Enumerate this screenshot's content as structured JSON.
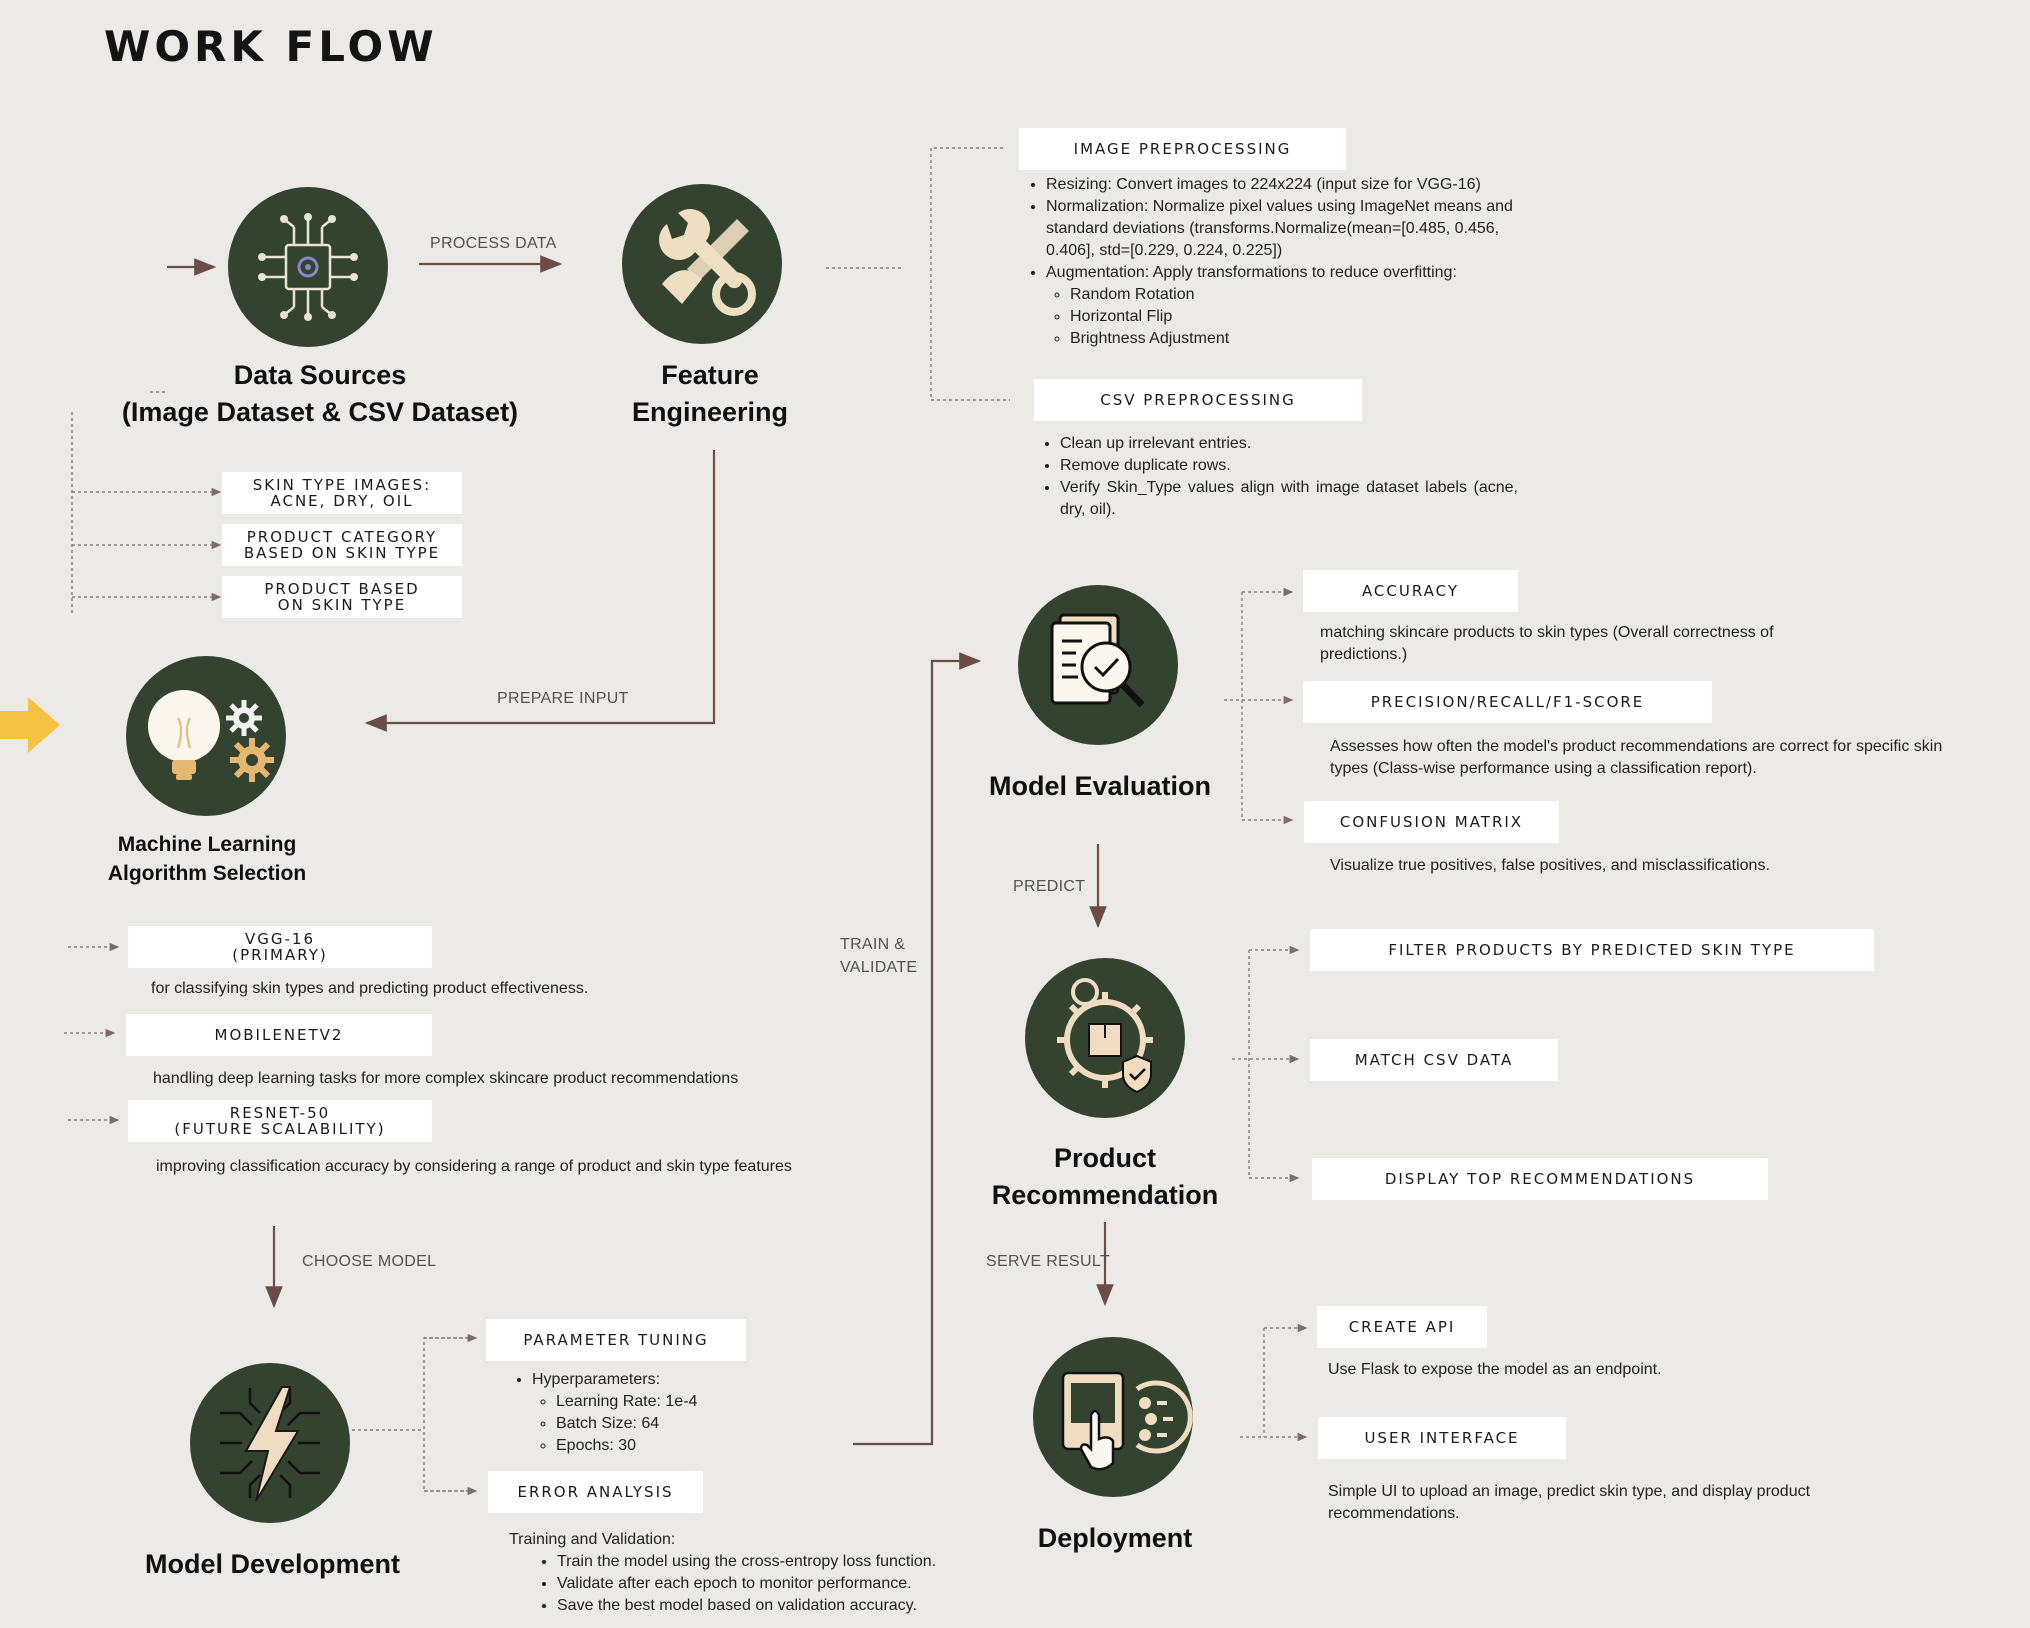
{
  "title": "WORK FLOW",
  "nodes": {
    "data_sources": {
      "line1": "Data Sources",
      "line2": "(Image Dataset & CSV Dataset)"
    },
    "feature_engineering": {
      "line1": "Feature",
      "line2": "Engineering"
    },
    "ml_selection": {
      "line1": "Machine Learning",
      "line2": "Algorithm Selection"
    },
    "model_development": {
      "label": "Model Development"
    },
    "model_evaluation": {
      "label": "Model Evaluation"
    },
    "product_recommendation": {
      "line1": "Product",
      "line2": "Recommendation"
    },
    "deployment": {
      "label": "Deployment"
    }
  },
  "edges": {
    "process_data": "PROCESS DATA",
    "prepare_input": "PREPARE INPUT",
    "choose_model": "CHOOSE MODEL",
    "train_validate_1": "TRAIN &",
    "train_validate_2": "VALIDATE",
    "predict": "PREDICT",
    "serve_result": "SERVE RESULT"
  },
  "data_tags": [
    {
      "line1": "SKIN TYPE IMAGES:",
      "line2": "ACNE, DRY, OIL"
    },
    {
      "line1": "PRODUCT CATEGORY",
      "line2": "BASED ON SKIN TYPE"
    },
    {
      "line1": "PRODUCT BASED",
      "line2": "ON SKIN TYPE"
    }
  ],
  "image_preprocessing": {
    "title": "IMAGE PREPROCESSING",
    "bullets": [
      "Resizing: Convert images to 224x224 (input size for VGG-16)",
      "Normalization: Normalize pixel values using ImageNet means and standard deviations (transforms.Normalize(mean=[0.485, 0.456, 0.406], std=[0.229, 0.224, 0.225])",
      "Augmentation: Apply transformations to reduce overfitting:"
    ],
    "sub_bullets": [
      "Random Rotation",
      "Horizontal Flip",
      "Brightness Adjustment"
    ]
  },
  "csv_preprocessing": {
    "title": "CSV PREPROCESSING",
    "bullets": [
      "Clean up irrelevant entries.",
      "Remove duplicate rows.",
      "Verify Skin_Type values align with image dataset labels (acne, dry, oil)."
    ]
  },
  "models": [
    {
      "line1": "VGG-16",
      "line2": "(PRIMARY)",
      "desc": "for classifying skin types and predicting product effectiveness."
    },
    {
      "line1": "MOBILENETV2",
      "line2": "",
      "desc": "handling deep learning tasks for more complex skincare product recommendations"
    },
    {
      "line1": "RESNET-50",
      "line2": "(FUTURE SCALABILITY)",
      "desc": "improving classification accuracy by considering a range of product and skin type features"
    }
  ],
  "parameter_tuning": {
    "title": "PARAMETER TUNING",
    "bullet": "Hyperparameters:",
    "sub_bullets": [
      "Learning Rate: 1e-4",
      "Batch Size: 64",
      "Epochs: 30"
    ]
  },
  "error_analysis": {
    "title": "ERROR ANALYSIS",
    "intro": "Training and Validation:",
    "bullets": [
      "Train the model using the cross-entropy loss function.",
      "Validate after each epoch to monitor performance.",
      "Save the best model based on validation accuracy."
    ]
  },
  "evaluation": {
    "accuracy": {
      "title": "ACCURACY",
      "desc": "matching skincare products to skin types (Overall correctness of predictions.)"
    },
    "prf": {
      "title": "PRECISION/RECALL/F1-SCORE",
      "desc": "Assesses how often the model's product recommendations are correct for specific skin types (Class-wise performance using a classification report)."
    },
    "confusion": {
      "title": "CONFUSION MATRIX",
      "desc": "Visualize true positives, false positives, and misclassifications."
    }
  },
  "recommendation_tags": [
    "FILTER PRODUCTS BY PREDICTED SKIN TYPE",
    "MATCH CSV DATA",
    "DISPLAY TOP RECOMMENDATIONS"
  ],
  "deployment_items": {
    "api": {
      "title": "CREATE API",
      "desc": "Use Flask to expose the model as an endpoint."
    },
    "ui": {
      "title": "USER INTERFACE",
      "desc": "Simple UI to upload an image, predict skin type, and display product recommendations."
    }
  },
  "colors": {
    "circle": "#33432f",
    "accent": "#f5c243",
    "arrow": "#6b4c47",
    "background": "#ebeae7"
  }
}
